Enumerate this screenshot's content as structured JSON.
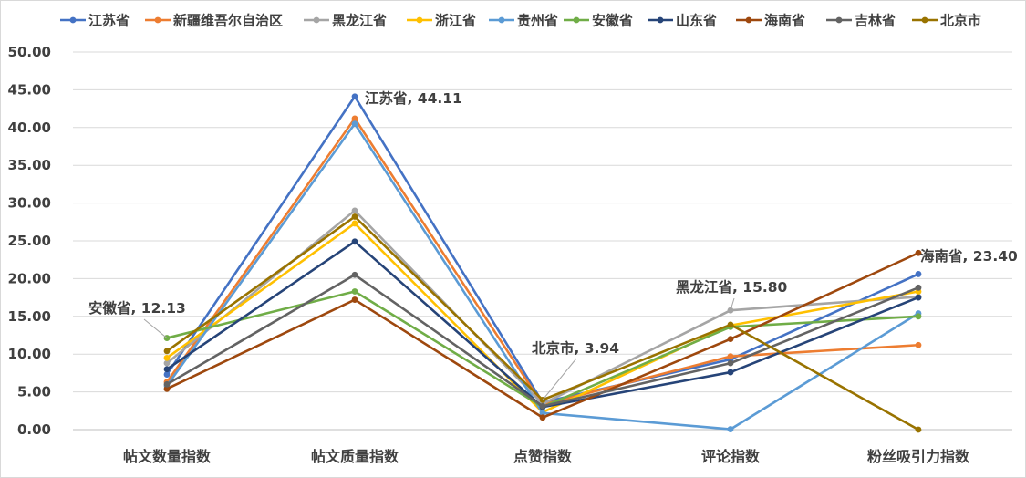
{
  "chart_data": {
    "type": "line",
    "title": "",
    "xlabel": "",
    "ylabel": "",
    "ylim": [
      0,
      50
    ],
    "ytick_step": 5,
    "ytick_labels": [
      "0.00",
      "5.00",
      "10.00",
      "15.00",
      "20.00",
      "25.00",
      "30.00",
      "35.00",
      "40.00",
      "45.00",
      "50.00"
    ],
    "grid": true,
    "legend_position": "top",
    "categories": [
      "帖文数量指数",
      "帖文质量指数",
      "点赞指数",
      "评论指数",
      "粉丝吸引力指数"
    ],
    "series": [
      {
        "name": "江苏省",
        "color": "#4472C4",
        "values": [
          7.3,
          44.11,
          3.6,
          9.3,
          20.6
        ]
      },
      {
        "name": "新疆维吾尔自治区",
        "color": "#ED7D31",
        "values": [
          6.3,
          41.2,
          3.3,
          9.7,
          11.2
        ]
      },
      {
        "name": "黑龙江省",
        "color": "#A5A5A5",
        "values": [
          8.8,
          29.0,
          3.4,
          15.8,
          17.6
        ]
      },
      {
        "name": "浙江省",
        "color": "#FFC000",
        "values": [
          9.5,
          27.3,
          2.3,
          13.8,
          18.3
        ]
      },
      {
        "name": "贵州省",
        "color": "#5B9BD5",
        "values": [
          5.8,
          40.5,
          2.2,
          0.05,
          15.4
        ]
      },
      {
        "name": "安徽省",
        "color": "#70AD47",
        "values": [
          12.13,
          18.3,
          3.0,
          13.6,
          15.0
        ]
      },
      {
        "name": "山东省",
        "color": "#264478",
        "values": [
          8.0,
          24.9,
          3.0,
          7.6,
          17.5
        ]
      },
      {
        "name": "海南省",
        "color": "#9E480E",
        "values": [
          5.4,
          17.2,
          1.6,
          12.0,
          23.4
        ]
      },
      {
        "name": "吉林省",
        "color": "#636363",
        "values": [
          6.0,
          20.5,
          3.1,
          8.8,
          18.8
        ]
      },
      {
        "name": "北京市",
        "color": "#997300",
        "values": [
          10.4,
          28.2,
          3.94,
          13.9,
          0.0
        ]
      }
    ],
    "annotations": [
      {
        "series": "江苏省",
        "category_index": 1,
        "text": "江苏省, 44.11"
      },
      {
        "series": "安徽省",
        "category_index": 0,
        "text": "安徽省, 12.13"
      },
      {
        "series": "北京市",
        "category_index": 2,
        "text": "北京市, 3.94"
      },
      {
        "series": "黑龙江省",
        "category_index": 3,
        "text": "黑龙江省, 15.80"
      },
      {
        "series": "海南省",
        "category_index": 4,
        "text": "海南省, 23.40"
      }
    ]
  }
}
